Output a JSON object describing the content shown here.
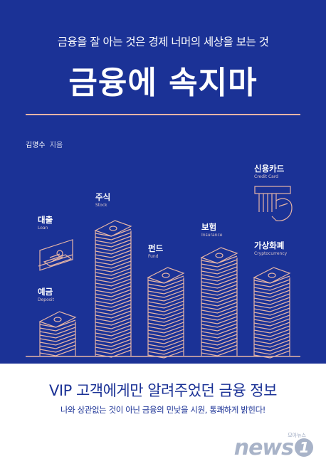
{
  "cover": {
    "subtitle": "금융을 잘 아는 것은 경제 너머의 세상을 보는 것",
    "title": "금융에 속지마",
    "author_name": "김명수",
    "author_role": "지음",
    "tagline": "VIP 고객에게만 알려주었던 금융 정보",
    "description": "나와 상관없는 것이 아닌 금융의 민낯을 시원, 통쾌하게 밝힌다!"
  },
  "categories": [
    {
      "ko": "예금",
      "en": "Deposit"
    },
    {
      "ko": "대출",
      "en": "Loan"
    },
    {
      "ko": "주식",
      "en": "Stock"
    },
    {
      "ko": "펀드",
      "en": "Fund"
    },
    {
      "ko": "보험",
      "en": "Insurance"
    },
    {
      "ko": "신용카드",
      "en": "Credit Card"
    },
    {
      "ko": "가상화폐",
      "en": "Cryptocurrency"
    }
  ],
  "watermark": {
    "brand": "news",
    "mark": "1",
    "small": "모아뉴스"
  },
  "colors": {
    "background": "#1b3296",
    "accent": "#e6b5a6",
    "panel": "#ffffff"
  }
}
